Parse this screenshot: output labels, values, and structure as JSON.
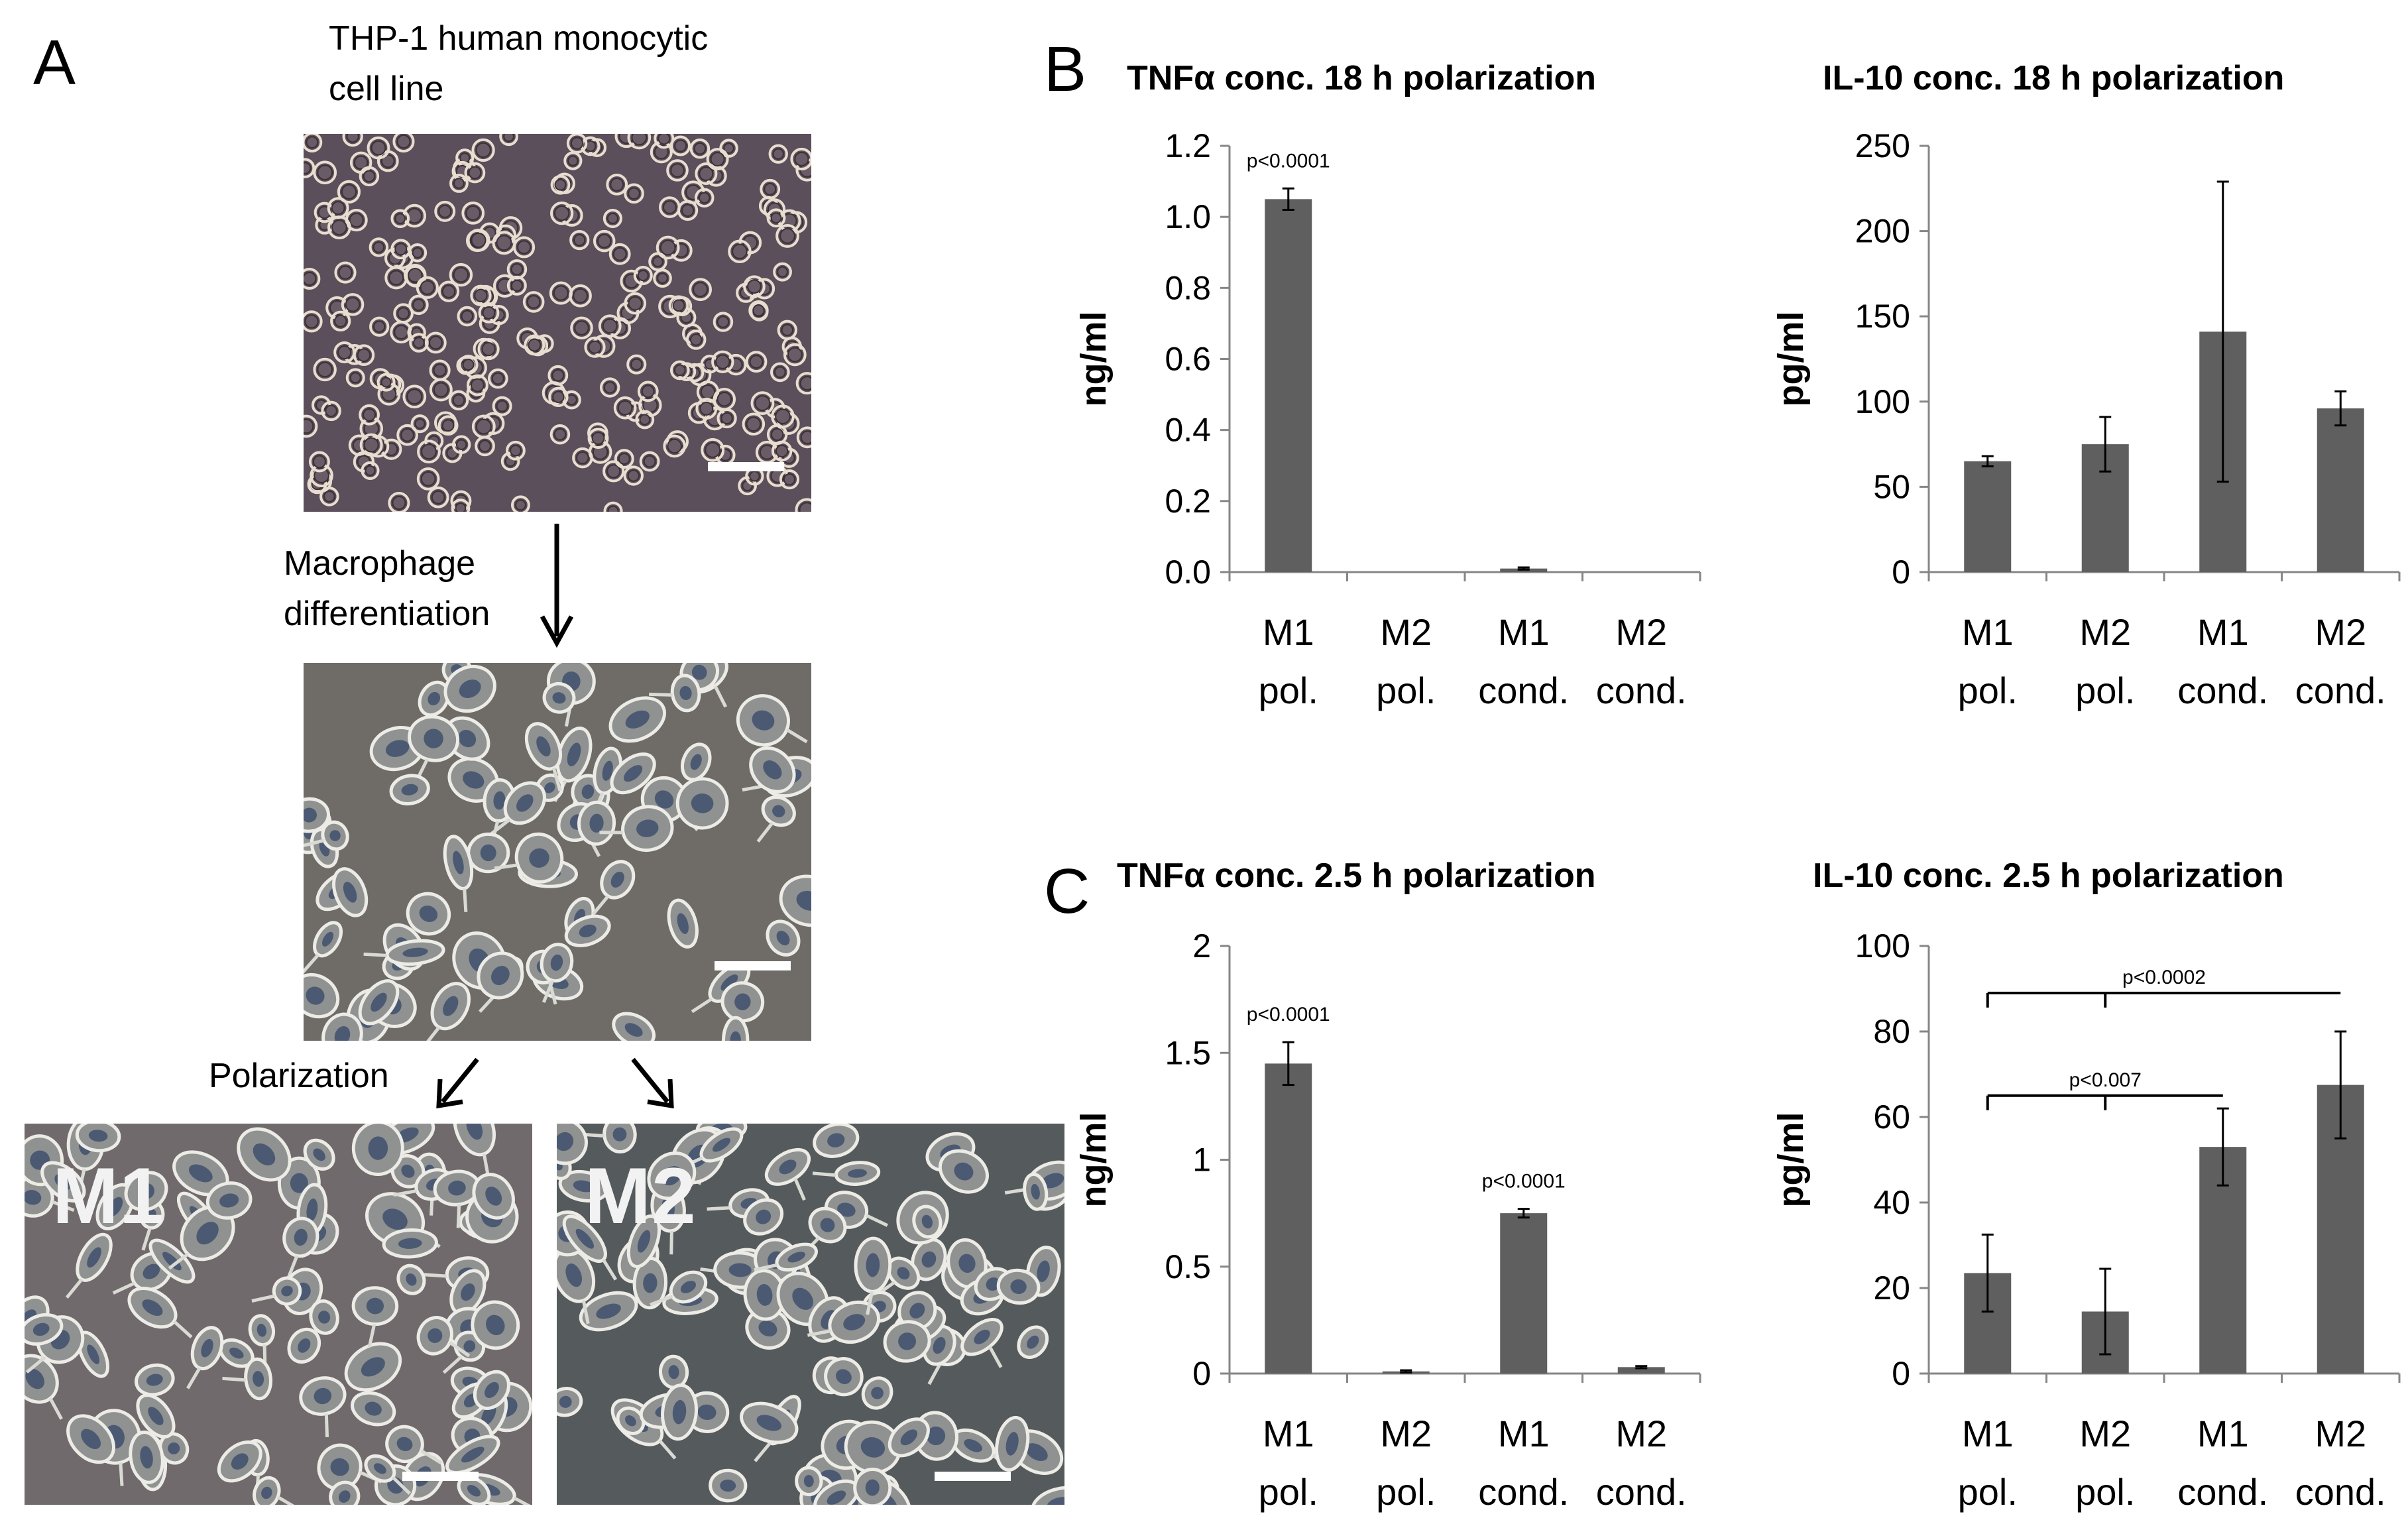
{
  "panel_A": {
    "letter": "A",
    "source_label_line1": "THP-1 human monocytic",
    "source_label_line2": "cell line",
    "step1_line1": "Macrophage",
    "step1_line2": "differentiation",
    "step2": "Polarization",
    "tag_m1": "M1",
    "tag_m2": "M2"
  },
  "panel_B": {
    "letter": "B"
  },
  "panel_C": {
    "letter": "C"
  },
  "colors": {
    "bar": "#5f5f5f",
    "axis": "#868686",
    "text": "#000000"
  },
  "chart_data": [
    {
      "type": "bar",
      "title": "TNFα conc. 18 h polarization",
      "ylabel": "ng/ml",
      "ylim": [
        0,
        1.2
      ],
      "yticks": [
        "0.0",
        "0.2",
        "0.4",
        "0.6",
        "0.8",
        "1.0",
        "1.2"
      ],
      "yticks_values": [
        0,
        0.2,
        0.4,
        0.6,
        0.8,
        1.0,
        1.2
      ],
      "categories": [
        [
          "M1",
          "pol."
        ],
        [
          "M2",
          "pol."
        ],
        [
          "M1",
          "cond."
        ],
        [
          "M2",
          "cond."
        ]
      ],
      "values": [
        1.05,
        0.0,
        0.01,
        0.0
      ],
      "errors": [
        0.03,
        0.0,
        0.003,
        0.0
      ],
      "annotations": [
        {
          "bar": 0,
          "text": "p<0.0001"
        }
      ],
      "brackets": []
    },
    {
      "type": "bar",
      "title": "IL-10 conc. 18 h polarization",
      "ylabel": "pg/ml",
      "ylim": [
        0,
        250
      ],
      "yticks": [
        "0",
        "50",
        "100",
        "150",
        "200",
        "250"
      ],
      "yticks_values": [
        0,
        50,
        100,
        150,
        200,
        250
      ],
      "categories": [
        [
          "M1",
          "pol."
        ],
        [
          "M2",
          "pol."
        ],
        [
          "M1",
          "cond."
        ],
        [
          "M2",
          "cond."
        ]
      ],
      "values": [
        65,
        75,
        141,
        96
      ],
      "errors": [
        3,
        16,
        88,
        10
      ],
      "annotations": [],
      "brackets": []
    },
    {
      "type": "bar",
      "title": "TNFα conc. 2.5 h polarization",
      "ylabel": "ng/ml",
      "ylim": [
        0,
        2
      ],
      "yticks": [
        "0",
        "0.5",
        "1",
        "1.5",
        "2"
      ],
      "yticks_values": [
        0,
        0.5,
        1,
        1.5,
        2
      ],
      "categories": [
        [
          "M1",
          "pol."
        ],
        [
          "M2",
          "pol."
        ],
        [
          "M1",
          "cond."
        ],
        [
          "M2",
          "cond."
        ]
      ],
      "values": [
        1.45,
        0.01,
        0.75,
        0.03
      ],
      "errors": [
        0.1,
        0.005,
        0.02,
        0.005
      ],
      "annotations": [
        {
          "bar": 0,
          "text": "p<0.0001"
        },
        {
          "bar": 2,
          "text": "p<0.0001"
        }
      ],
      "brackets": []
    },
    {
      "type": "bar",
      "title": "IL-10 conc. 2.5 h polarization",
      "ylabel": "pg/ml",
      "ylim": [
        0,
        100
      ],
      "yticks": [
        "0",
        "20",
        "40",
        "60",
        "80",
        "100"
      ],
      "yticks_values": [
        0,
        20,
        40,
        60,
        80,
        100
      ],
      "categories": [
        [
          "M1",
          "pol."
        ],
        [
          "M2",
          "pol."
        ],
        [
          "M1",
          "cond."
        ],
        [
          "M2",
          "cond."
        ]
      ],
      "values": [
        23.5,
        14.5,
        53,
        67.5
      ],
      "errors": [
        9,
        10,
        9,
        12.5
      ],
      "annotations": [],
      "brackets": [
        {
          "from": 0,
          "to": 3,
          "y": 89,
          "mid_tick": 1,
          "text": "p<0.0002"
        },
        {
          "from": 0,
          "to": 2,
          "y": 65,
          "mid_tick": 1,
          "text": "p<0.007"
        }
      ]
    }
  ]
}
